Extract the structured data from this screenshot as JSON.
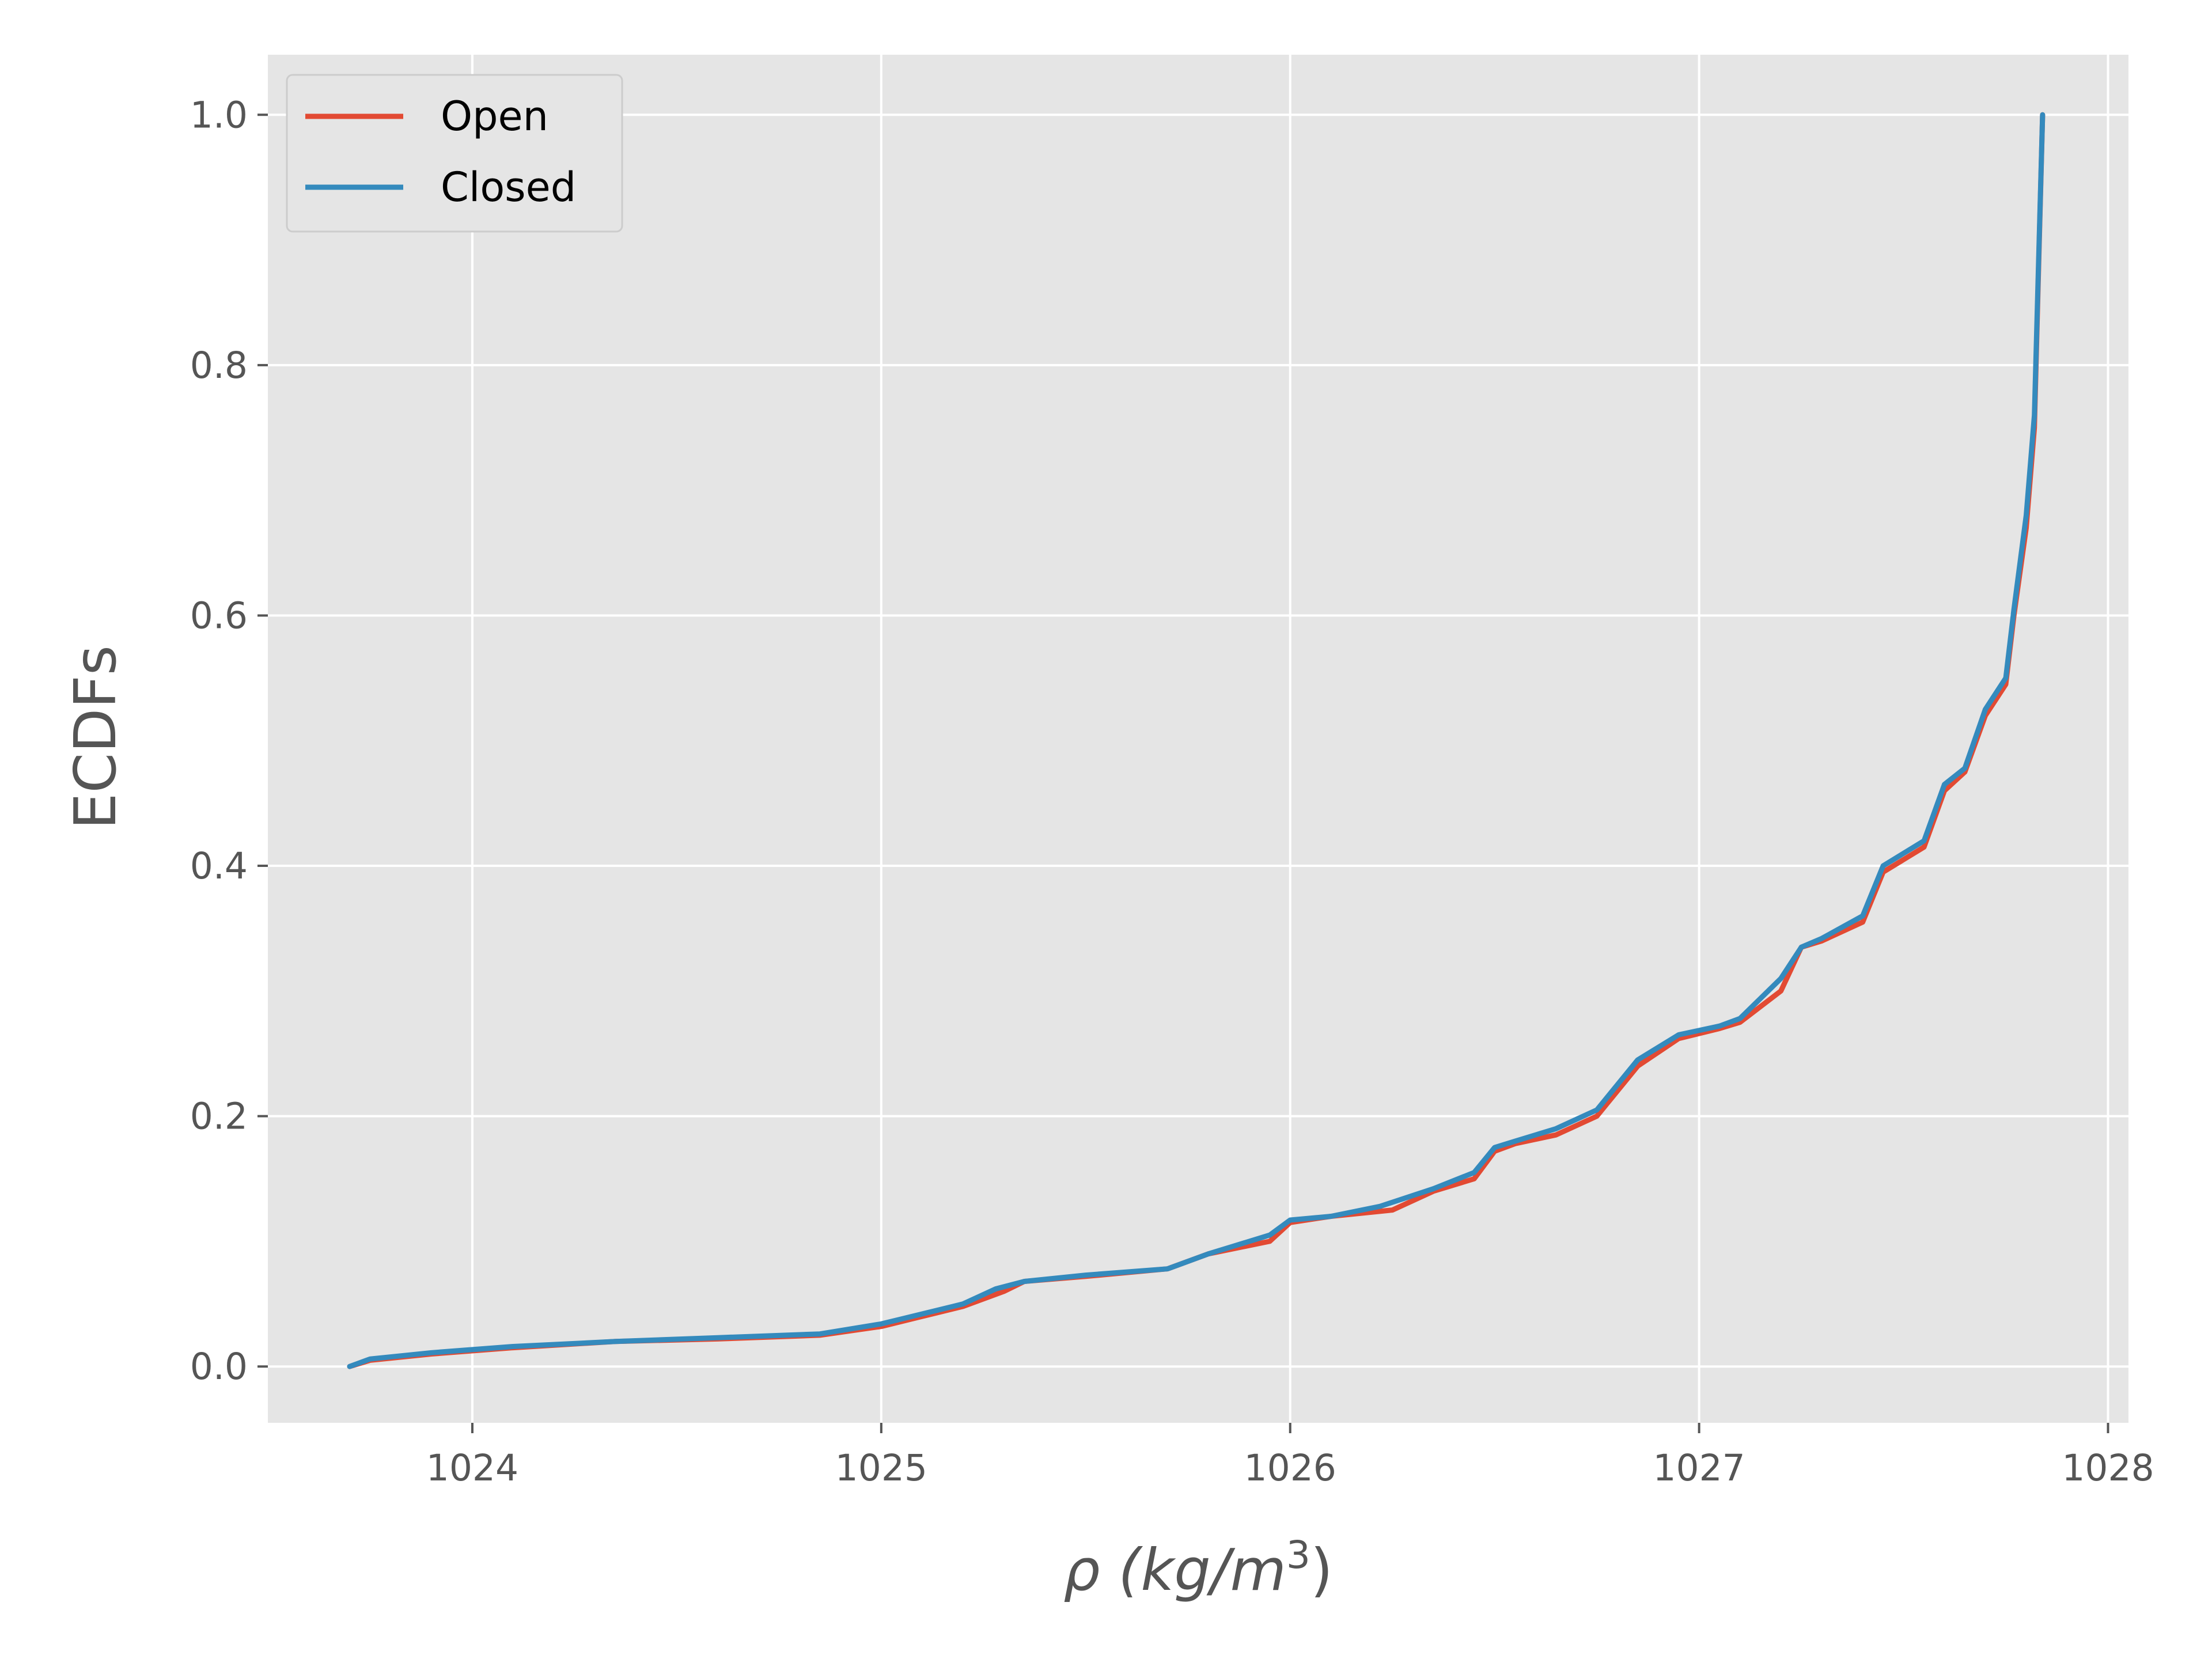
{
  "chart_data": {
    "type": "line",
    "title": "",
    "xlabel": "ρ (kg/m",
    "xlabel_sup": "3",
    "xlabel_close": ")",
    "ylabel": "ECDFs",
    "xlim": [
      1023.5,
      1028.05
    ],
    "ylim": [
      -0.045,
      1.048
    ],
    "xticks": [
      1024,
      1025,
      1026,
      1027,
      1028
    ],
    "yticks": [
      0.0,
      0.2,
      0.4,
      0.6,
      0.8,
      1.0
    ],
    "xtick_labels": [
      "1024",
      "1025",
      "1026",
      "1027",
      "1028"
    ],
    "ytick_labels": [
      "0.0",
      "0.2",
      "0.4",
      "0.6",
      "0.8",
      "1.0"
    ],
    "grid": true,
    "legend": "top-left",
    "colors": {
      "Open": "#E24A33",
      "Closed": "#348ABD",
      "background": "#E5E5E5",
      "grid": "#FFFFFF"
    },
    "series": [
      {
        "name": "Open",
        "x": [
          1023.7,
          1023.75,
          1023.9,
          1024.1,
          1024.35,
          1024.6,
          1024.85,
          1025.0,
          1025.1,
          1025.2,
          1025.3,
          1025.35,
          1025.5,
          1025.7,
          1025.8,
          1025.95,
          1026.0,
          1026.1,
          1026.25,
          1026.35,
          1026.45,
          1026.5,
          1026.55,
          1026.65,
          1026.75,
          1026.85,
          1026.95,
          1027.05,
          1027.1,
          1027.2,
          1027.25,
          1027.3,
          1027.4,
          1027.45,
          1027.5,
          1027.55,
          1027.6,
          1027.65,
          1027.7,
          1027.75,
          1027.77,
          1027.8,
          1027.82,
          1027.84
        ],
        "y": [
          0.0,
          0.005,
          0.01,
          0.015,
          0.02,
          0.022,
          0.025,
          0.032,
          0.04,
          0.048,
          0.06,
          0.068,
          0.072,
          0.078,
          0.09,
          0.1,
          0.115,
          0.12,
          0.125,
          0.14,
          0.15,
          0.172,
          0.178,
          0.185,
          0.2,
          0.24,
          0.262,
          0.27,
          0.275,
          0.3,
          0.335,
          0.34,
          0.355,
          0.395,
          0.405,
          0.415,
          0.46,
          0.475,
          0.52,
          0.545,
          0.6,
          0.67,
          0.75,
          1.0
        ]
      },
      {
        "name": "Closed",
        "x": [
          1023.7,
          1023.75,
          1023.9,
          1024.1,
          1024.35,
          1024.6,
          1024.85,
          1025.0,
          1025.1,
          1025.2,
          1025.28,
          1025.35,
          1025.5,
          1025.7,
          1025.8,
          1025.95,
          1026.0,
          1026.1,
          1026.22,
          1026.35,
          1026.45,
          1026.5,
          1026.55,
          1026.65,
          1026.75,
          1026.85,
          1026.95,
          1027.05,
          1027.1,
          1027.2,
          1027.25,
          1027.3,
          1027.4,
          1027.45,
          1027.5,
          1027.55,
          1027.6,
          1027.65,
          1027.7,
          1027.75,
          1027.77,
          1027.8,
          1027.82,
          1027.84
        ],
        "y": [
          0.0,
          0.006,
          0.011,
          0.016,
          0.02,
          0.023,
          0.026,
          0.034,
          0.042,
          0.05,
          0.062,
          0.068,
          0.073,
          0.078,
          0.09,
          0.105,
          0.117,
          0.12,
          0.128,
          0.142,
          0.155,
          0.175,
          0.18,
          0.19,
          0.205,
          0.245,
          0.265,
          0.272,
          0.278,
          0.31,
          0.335,
          0.342,
          0.36,
          0.4,
          0.41,
          0.42,
          0.465,
          0.478,
          0.525,
          0.55,
          0.605,
          0.68,
          0.76,
          1.0
        ]
      }
    ]
  }
}
